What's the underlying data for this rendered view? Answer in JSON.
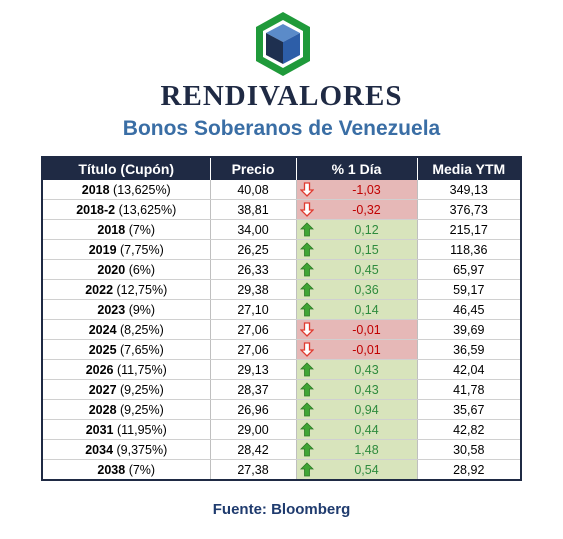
{
  "header": {
    "brand": "RENDIVALORES",
    "subtitle": "Bonos Soberanos de Venezuela",
    "logo_icon": "cube-hexagon-logo",
    "colors": {
      "navy": "#1f2a44",
      "accent_blue": "#3a6ea5",
      "logo_green": "#1f9a3a"
    }
  },
  "table": {
    "columns": [
      "Título (Cupón)",
      "Precio",
      "% 1 Día",
      "Media YTM"
    ],
    "rows": [
      {
        "year": "2018",
        "coupon": " (13,625%)",
        "price": "40,08",
        "change": "-1,03",
        "direction": "down",
        "ytm": "349,13"
      },
      {
        "year": "2018-2",
        "coupon": " (13,625%)",
        "price": "38,81",
        "change": "-0,32",
        "direction": "down",
        "ytm": "376,73"
      },
      {
        "year": "2018",
        "coupon": " (7%)",
        "price": "34,00",
        "change": "0,12",
        "direction": "up",
        "ytm": "215,17"
      },
      {
        "year": "2019",
        "coupon": " (7,75%)",
        "price": "26,25",
        "change": "0,15",
        "direction": "up",
        "ytm": "118,36"
      },
      {
        "year": "2020",
        "coupon": " (6%)",
        "price": "26,33",
        "change": "0,45",
        "direction": "up",
        "ytm": "65,97"
      },
      {
        "year": "2022",
        "coupon": " (12,75%)",
        "price": "29,38",
        "change": "0,36",
        "direction": "up",
        "ytm": "59,17"
      },
      {
        "year": "2023",
        "coupon": " (9%)",
        "price": "27,10",
        "change": "0,14",
        "direction": "up",
        "ytm": "46,45"
      },
      {
        "year": "2024",
        "coupon": " (8,25%)",
        "price": "27,06",
        "change": "-0,01",
        "direction": "down",
        "ytm": "39,69"
      },
      {
        "year": "2025",
        "coupon": " (7,65%)",
        "price": "27,06",
        "change": "-0,01",
        "direction": "down",
        "ytm": "36,59"
      },
      {
        "year": "2026",
        "coupon": " (11,75%)",
        "price": "29,13",
        "change": "0,43",
        "direction": "up",
        "ytm": "42,04"
      },
      {
        "year": "2027",
        "coupon": " (9,25%)",
        "price": "28,37",
        "change": "0,43",
        "direction": "up",
        "ytm": "41,78"
      },
      {
        "year": "2028",
        "coupon": " (9,25%)",
        "price": "26,96",
        "change": "0,94",
        "direction": "up",
        "ytm": "35,67"
      },
      {
        "year": "2031",
        "coupon": " (11,95%)",
        "price": "29,00",
        "change": "0,44",
        "direction": "up",
        "ytm": "42,82"
      },
      {
        "year": "2034",
        "coupon": " (9,375%)",
        "price": "28,42",
        "change": "1,48",
        "direction": "up",
        "ytm": "30,58"
      },
      {
        "year": "2038",
        "coupon": " (7%)",
        "price": "27,38",
        "change": "0,54",
        "direction": "up",
        "ytm": "28,92"
      }
    ],
    "colors": {
      "up_fill": "#d8e4bc",
      "down_fill": "#e6b8b7",
      "up_text": "#2e8b3d",
      "down_text": "#c00000"
    },
    "icons": {
      "up": "green-up-arrow-icon",
      "down": "red-down-arrow-icon"
    }
  },
  "footer": {
    "source": "Fuente: Bloomberg"
  }
}
